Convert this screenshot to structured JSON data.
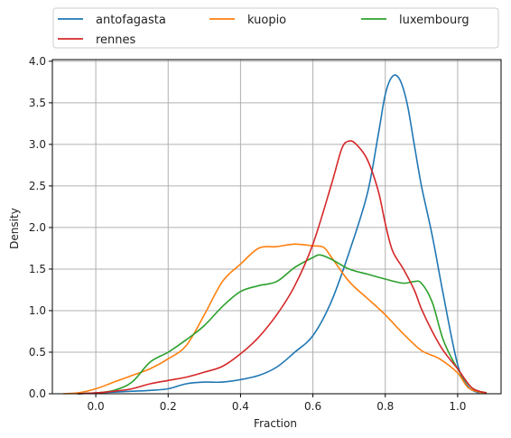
{
  "chart_data": {
    "type": "line",
    "title": "",
    "xlabel": "Fraction",
    "ylabel": "Density",
    "xlim": [
      -0.12,
      1.12
    ],
    "ylim": [
      0.0,
      4.02
    ],
    "xticks": [
      "0.0",
      "0.2",
      "0.4",
      "0.6",
      "0.8",
      "1.0"
    ],
    "yticks": [
      "0.0",
      "0.5",
      "1.0",
      "1.5",
      "2.0",
      "2.5",
      "3.0",
      "3.5",
      "4.0"
    ],
    "grid": true,
    "legend_position": "top, above plot, 3 columns",
    "series": [
      {
        "name": "antofagasta",
        "color": "#1f77b4",
        "x": [
          -0.05,
          0.0,
          0.05,
          0.1,
          0.15,
          0.2,
          0.25,
          0.3,
          0.35,
          0.4,
          0.45,
          0.5,
          0.55,
          0.6,
          0.65,
          0.7,
          0.75,
          0.78,
          0.8,
          0.82,
          0.84,
          0.86,
          0.88,
          0.9,
          0.93,
          0.96,
          1.0,
          1.03,
          1.06
        ],
        "y": [
          0.0,
          0.01,
          0.02,
          0.03,
          0.04,
          0.06,
          0.12,
          0.14,
          0.14,
          0.17,
          0.22,
          0.32,
          0.5,
          0.7,
          1.1,
          1.7,
          2.4,
          3.1,
          3.6,
          3.82,
          3.78,
          3.5,
          3.0,
          2.5,
          1.9,
          1.2,
          0.35,
          0.08,
          0.01
        ]
      },
      {
        "name": "kuopio",
        "color": "#ff7f0e",
        "x": [
          -0.09,
          -0.05,
          0.0,
          0.05,
          0.1,
          0.15,
          0.2,
          0.25,
          0.3,
          0.35,
          0.4,
          0.45,
          0.5,
          0.55,
          0.6,
          0.63,
          0.65,
          0.7,
          0.75,
          0.8,
          0.85,
          0.9,
          0.95,
          1.0,
          1.03,
          1.07
        ],
        "y": [
          0.0,
          0.01,
          0.06,
          0.14,
          0.22,
          0.3,
          0.42,
          0.58,
          0.95,
          1.35,
          1.56,
          1.75,
          1.77,
          1.8,
          1.78,
          1.76,
          1.65,
          1.35,
          1.15,
          0.95,
          0.72,
          0.52,
          0.42,
          0.25,
          0.07,
          0.01
        ]
      },
      {
        "name": "luxembourg",
        "color": "#2ca02c",
        "x": [
          -0.05,
          0.0,
          0.05,
          0.1,
          0.15,
          0.2,
          0.25,
          0.3,
          0.35,
          0.4,
          0.45,
          0.5,
          0.55,
          0.6,
          0.62,
          0.65,
          0.7,
          0.75,
          0.8,
          0.85,
          0.88,
          0.9,
          0.93,
          0.96,
          1.0,
          1.04,
          1.08
        ],
        "y": [
          0.0,
          0.01,
          0.04,
          0.14,
          0.38,
          0.5,
          0.65,
          0.82,
          1.05,
          1.23,
          1.3,
          1.35,
          1.52,
          1.64,
          1.67,
          1.62,
          1.5,
          1.44,
          1.38,
          1.33,
          1.35,
          1.33,
          1.1,
          0.65,
          0.3,
          0.07,
          0.01
        ]
      },
      {
        "name": "rennes",
        "color": "#d62728",
        "x": [
          -0.05,
          0.0,
          0.05,
          0.1,
          0.15,
          0.2,
          0.25,
          0.3,
          0.35,
          0.4,
          0.45,
          0.5,
          0.55,
          0.6,
          0.65,
          0.68,
          0.7,
          0.72,
          0.75,
          0.78,
          0.8,
          0.82,
          0.85,
          0.88,
          0.9,
          0.93,
          0.96,
          1.0,
          1.04,
          1.08
        ],
        "y": [
          0.0,
          0.01,
          0.03,
          0.06,
          0.12,
          0.16,
          0.2,
          0.26,
          0.33,
          0.48,
          0.68,
          0.95,
          1.3,
          1.8,
          2.5,
          2.95,
          3.04,
          3.0,
          2.82,
          2.45,
          2.05,
          1.72,
          1.5,
          1.25,
          1.02,
          0.75,
          0.52,
          0.3,
          0.07,
          0.01
        ]
      }
    ]
  }
}
